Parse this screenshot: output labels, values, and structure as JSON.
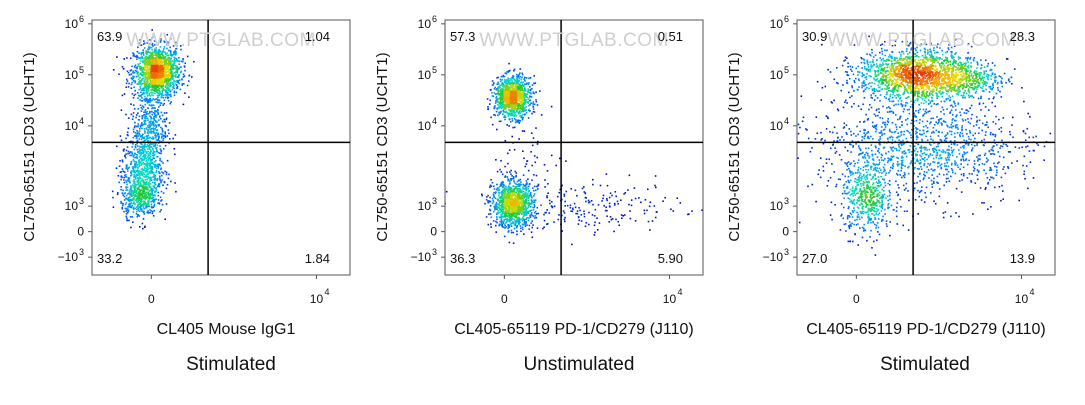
{
  "chart_data": [
    {
      "type": "scatter",
      "subtype": "flow-cytometry-density-plot",
      "xlabel": "CL405 Mouse IgG1",
      "ylabel": "CL750-65151 CD3 (UCHT1)",
      "caption": "Stimulated",
      "watermark": "WWW.PTGLAB.COM",
      "quadrants": {
        "top_left": "63.9",
        "top_right": "1.04",
        "bottom_left": "33.2",
        "bottom_right": "1.84"
      },
      "populations": [
        {
          "x": 0.25,
          "y": 0.8,
          "sx": 0.045,
          "sy": 0.05,
          "n": 1400
        },
        {
          "x": 0.22,
          "y": 0.58,
          "sx": 0.035,
          "sy": 0.1,
          "n": 500
        },
        {
          "x": 0.19,
          "y": 0.4,
          "sx": 0.04,
          "sy": 0.07,
          "n": 600
        },
        {
          "x": 0.18,
          "y": 0.3,
          "sx": 0.035,
          "sy": 0.035,
          "n": 300
        }
      ]
    },
    {
      "type": "scatter",
      "subtype": "flow-cytometry-density-plot",
      "xlabel": "CL405-65119 PD-1/CD279 (J110)",
      "ylabel": "CL750-65151 CD3 (UCHT1)",
      "caption": "Unstimulated",
      "watermark": "WWW.PTGLAB.COM",
      "quadrants": {
        "top_left": "57.3",
        "top_right": "0.51",
        "bottom_left": "36.3",
        "bottom_right": "5.90"
      },
      "populations": [
        {
          "x": 0.26,
          "y": 0.7,
          "sx": 0.035,
          "sy": 0.04,
          "n": 1100
        },
        {
          "x": 0.26,
          "y": 0.28,
          "sx": 0.04,
          "sy": 0.045,
          "n": 1100
        },
        {
          "x": 0.55,
          "y": 0.27,
          "sx": 0.18,
          "sy": 0.05,
          "n": 220
        },
        {
          "x": 0.3,
          "y": 0.45,
          "sx": 0.08,
          "sy": 0.08,
          "n": 60
        }
      ]
    },
    {
      "type": "scatter",
      "subtype": "flow-cytometry-density-plot",
      "xlabel": "CL405-65119 PD-1/CD279 (J110)",
      "ylabel": "CL750-65151 CD3 (UCHT1)",
      "caption": "Stimulated",
      "watermark": "WWW.PTGLAB.COM",
      "quadrants": {
        "top_left": "30.9",
        "top_right": "28.3",
        "bottom_left": "27.0",
        "bottom_right": "13.9"
      },
      "populations": [
        {
          "x": 0.45,
          "y": 0.79,
          "sx": 0.11,
          "sy": 0.05,
          "n": 1500
        },
        {
          "x": 0.65,
          "y": 0.77,
          "sx": 0.08,
          "sy": 0.04,
          "n": 400
        },
        {
          "x": 0.45,
          "y": 0.55,
          "sx": 0.18,
          "sy": 0.1,
          "n": 700
        },
        {
          "x": 0.27,
          "y": 0.3,
          "sx": 0.05,
          "sy": 0.07,
          "n": 500
        },
        {
          "x": 0.5,
          "y": 0.45,
          "sx": 0.22,
          "sy": 0.09,
          "n": 500
        }
      ]
    }
  ],
  "axes": {
    "x_ticks": [
      {
        "label": "0",
        "exp": "",
        "pos": 0.23
      },
      {
        "label": "10",
        "exp": "4",
        "pos": 0.87
      }
    ],
    "y_ticks": [
      {
        "label": "10",
        "exp": "6",
        "pos": 0.985
      },
      {
        "label": "10",
        "exp": "5",
        "pos": 0.785
      },
      {
        "label": "10",
        "exp": "4",
        "pos": 0.585
      },
      {
        "label": "10",
        "exp": "3",
        "pos": 0.27
      },
      {
        "label": "0",
        "exp": "",
        "pos": 0.17
      },
      {
        "label": "−10",
        "exp": "3",
        "pos": 0.07
      }
    ],
    "gate_x": 0.45,
    "gate_y": 0.52
  }
}
